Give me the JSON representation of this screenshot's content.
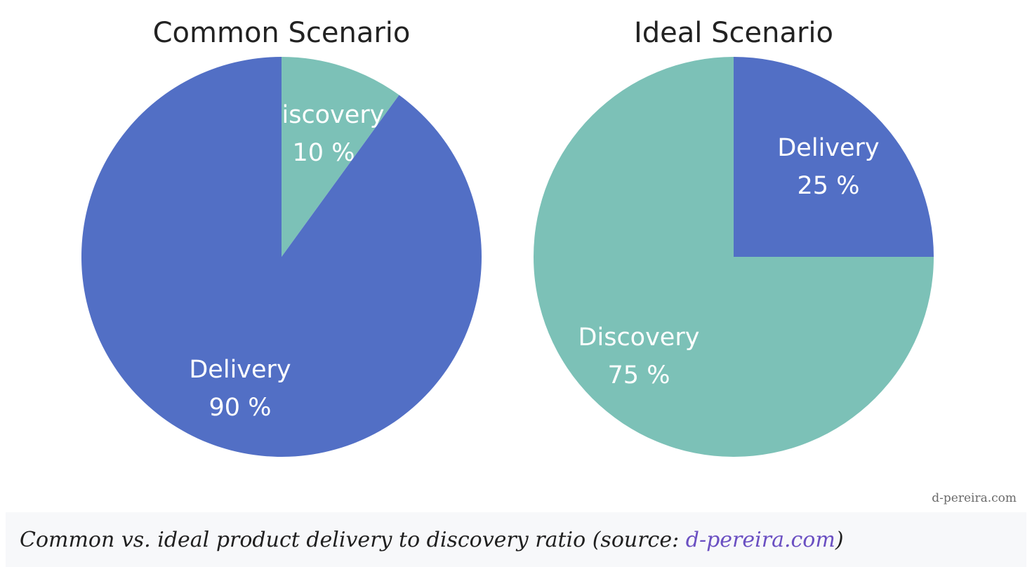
{
  "chart_data": [
    {
      "type": "pie",
      "title": "Common Scenario",
      "start": "top, clockwise",
      "slices": [
        {
          "label": "Discovery",
          "value": 10,
          "value_text": "10 %",
          "color": "#7cc1b7"
        },
        {
          "label": "Delivery",
          "value": 90,
          "value_text": "90 %",
          "color": "#526fc5"
        }
      ]
    },
    {
      "type": "pie",
      "title": "Ideal Scenario",
      "start": "top, clockwise",
      "slices": [
        {
          "label": "Delivery",
          "value": 25,
          "value_text": "25 %",
          "color": "#526fc5"
        },
        {
          "label": "Discovery",
          "value": 75,
          "value_text": "75 %",
          "color": "#7cc1b7"
        }
      ]
    }
  ],
  "watermark": "d-pereira.com",
  "caption": {
    "text_before": "Common vs. ideal product delivery to discovery ratio (source: ",
    "link_text": "d-pereira.com",
    "text_after": ")"
  },
  "colors": {
    "link": "#6a4fc2",
    "caption_bg": "#f7f8fa"
  }
}
